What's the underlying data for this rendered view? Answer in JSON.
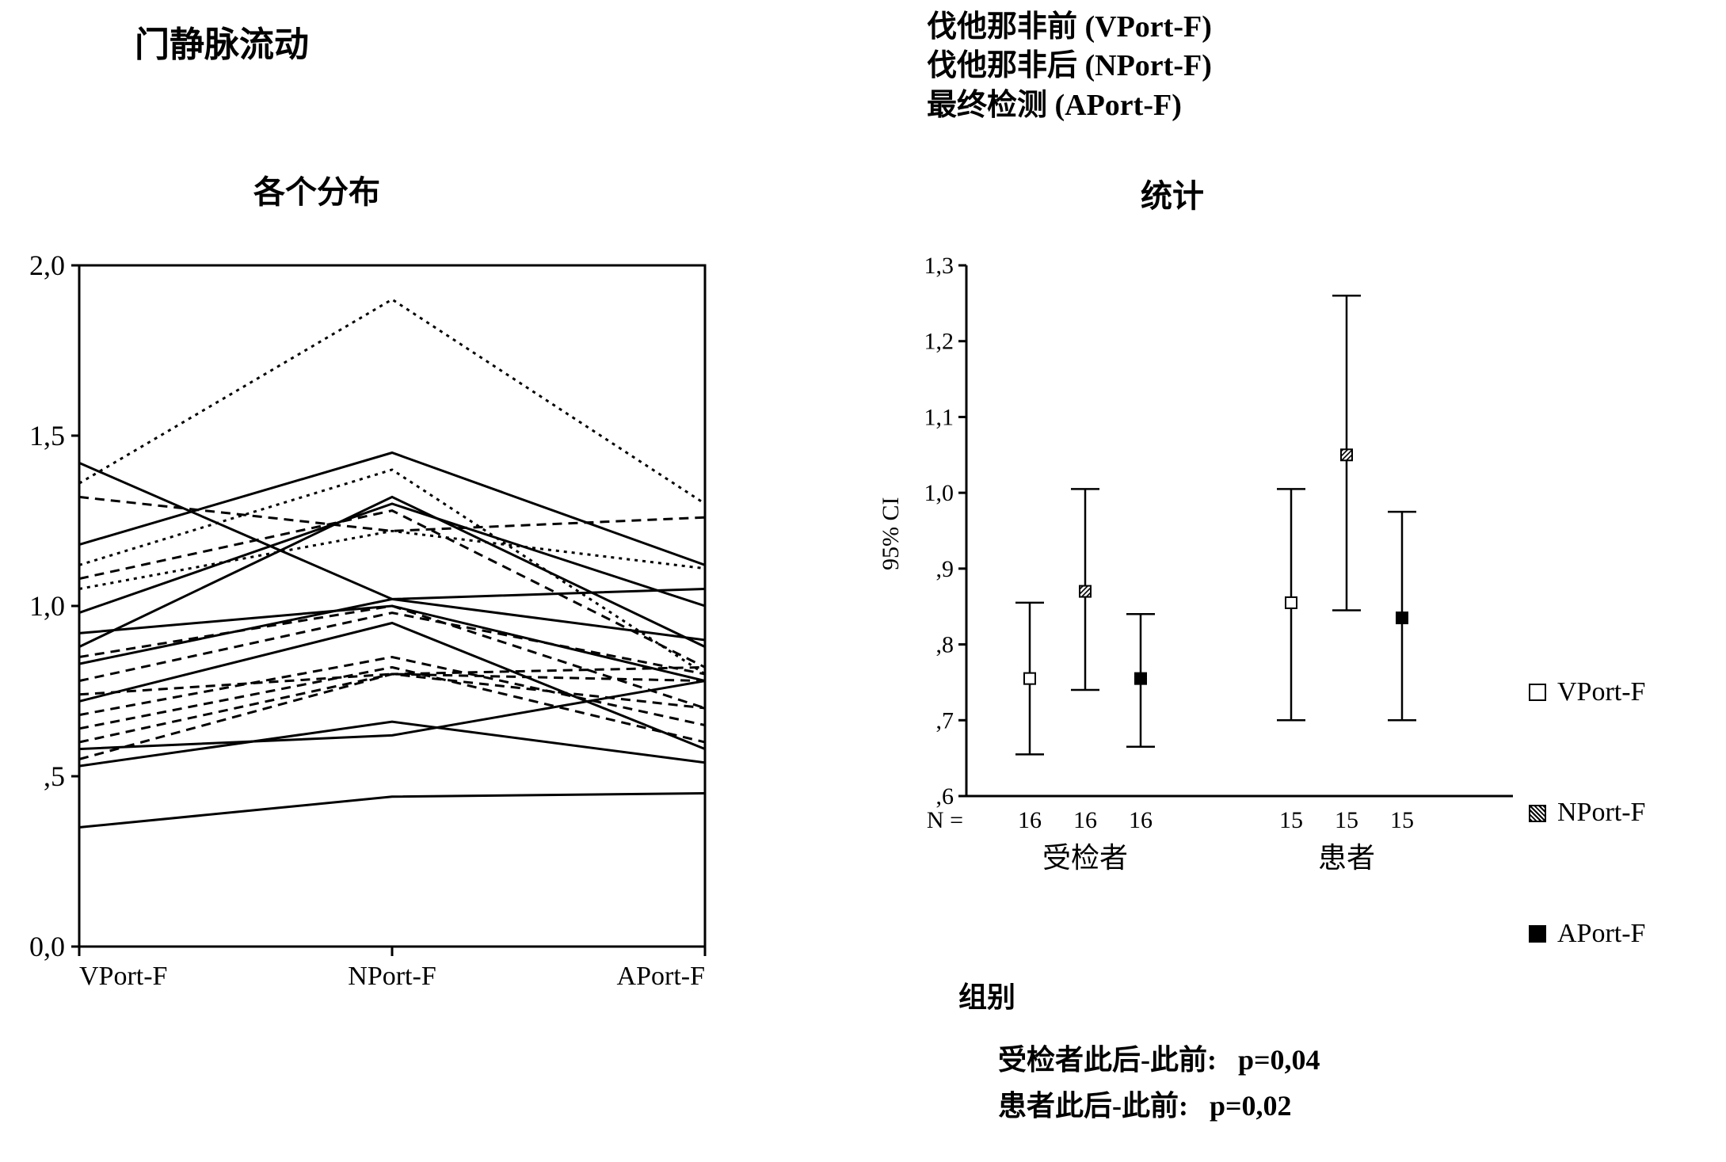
{
  "titles": {
    "main_left": "门静脉流动",
    "sub_left": "各个分布",
    "sub_right": "统计",
    "legend_vport": "伐他那非前 (VPort-F)",
    "legend_nport": "伐他那非后 (NPort-F)",
    "legend_aport": "最终检测 (APort-F)"
  },
  "left_chart": {
    "type": "line",
    "x_categories": [
      "VPort-F",
      "NPort-F",
      "APort-F"
    ],
    "ylim": [
      0.0,
      2.0
    ],
    "ytick_step": 0.5,
    "yticks": [
      "0,0",
      ",5",
      "1,0",
      "1,5",
      "2,0"
    ],
    "background_color": "#ffffff",
    "axis_color": "#000000",
    "line_color": "#000000",
    "line_width": 3,
    "dashed_width": 3,
    "series": [
      {
        "dash": "none",
        "v": [
          1.42,
          1.02,
          1.05
        ]
      },
      {
        "dash": "4 6",
        "v": [
          1.36,
          1.9,
          1.3
        ]
      },
      {
        "dash": "12 8",
        "v": [
          1.32,
          1.22,
          1.26
        ]
      },
      {
        "dash": "none",
        "v": [
          1.18,
          1.45,
          1.12
        ]
      },
      {
        "dash": "4 6",
        "v": [
          1.12,
          1.4,
          0.8
        ]
      },
      {
        "dash": "12 8",
        "v": [
          1.08,
          1.28,
          0.82
        ]
      },
      {
        "dash": "4 6",
        "v": [
          1.05,
          1.22,
          1.11
        ]
      },
      {
        "dash": "none",
        "v": [
          0.98,
          1.3,
          1.0
        ]
      },
      {
        "dash": "none",
        "v": [
          0.92,
          1.0,
          0.78
        ]
      },
      {
        "dash": "none",
        "v": [
          0.88,
          1.32,
          0.88
        ]
      },
      {
        "dash": "12 8",
        "v": [
          0.85,
          1.0,
          0.7
        ]
      },
      {
        "dash": "none",
        "v": [
          0.83,
          1.02,
          0.9
        ]
      },
      {
        "dash": "12 8",
        "v": [
          0.78,
          0.98,
          0.8
        ]
      },
      {
        "dash": "12 8",
        "v": [
          0.74,
          0.8,
          0.78
        ]
      },
      {
        "dash": "none",
        "v": [
          0.72,
          0.95,
          0.58
        ]
      },
      {
        "dash": "12 8",
        "v": [
          0.68,
          0.85,
          0.65
        ]
      },
      {
        "dash": "12 8",
        "v": [
          0.64,
          0.82,
          0.6
        ]
      },
      {
        "dash": "12 8",
        "v": [
          0.6,
          0.8,
          0.82
        ]
      },
      {
        "dash": "none",
        "v": [
          0.58,
          0.62,
          0.78
        ]
      },
      {
        "dash": "12 8",
        "v": [
          0.55,
          0.8,
          0.7
        ]
      },
      {
        "dash": "none",
        "v": [
          0.53,
          0.66,
          0.54
        ]
      },
      {
        "dash": "none",
        "v": [
          0.35,
          0.44,
          0.45
        ]
      }
    ]
  },
  "right_chart": {
    "type": "errorbar",
    "y_label": "95% CI",
    "ylim": [
      0.6,
      1.3
    ],
    "yticks": [
      ",6",
      ",7",
      ",8",
      ",9",
      "1,0",
      "1,1",
      "1,2",
      "1,3"
    ],
    "ytick_vals": [
      0.6,
      0.7,
      0.8,
      0.9,
      1.0,
      1.1,
      1.2,
      1.3
    ],
    "axis_color": "#000000",
    "marker_size": 14,
    "groups": [
      {
        "label": "受检者",
        "n": [
          16,
          16,
          16
        ],
        "points": [
          {
            "mean": 0.755,
            "lo": 0.655,
            "hi": 0.855,
            "marker": "open"
          },
          {
            "mean": 0.87,
            "lo": 0.74,
            "hi": 1.005,
            "marker": "hatch"
          },
          {
            "mean": 0.755,
            "lo": 0.665,
            "hi": 0.84,
            "marker": "solid"
          }
        ]
      },
      {
        "label": "患者",
        "n": [
          15,
          15,
          15
        ],
        "points": [
          {
            "mean": 0.855,
            "lo": 0.7,
            "hi": 1.005,
            "marker": "open"
          },
          {
            "mean": 1.05,
            "lo": 0.845,
            "hi": 1.26,
            "marker": "hatch"
          },
          {
            "mean": 0.835,
            "lo": 0.7,
            "hi": 0.975,
            "marker": "solid"
          }
        ]
      }
    ],
    "group_axis_label": "组别",
    "n_prefix": "N =",
    "legend": [
      {
        "marker": "open",
        "label": "VPort-F"
      },
      {
        "marker": "hatch",
        "label": "NPort-F"
      },
      {
        "marker": "solid",
        "label": "APort-F"
      }
    ]
  },
  "stats": {
    "line1_label": "受检者此后-此前:",
    "line1_val": "p=0,04",
    "line2_label": "患者此后-此前:",
    "line2_val": "p=0,02"
  }
}
